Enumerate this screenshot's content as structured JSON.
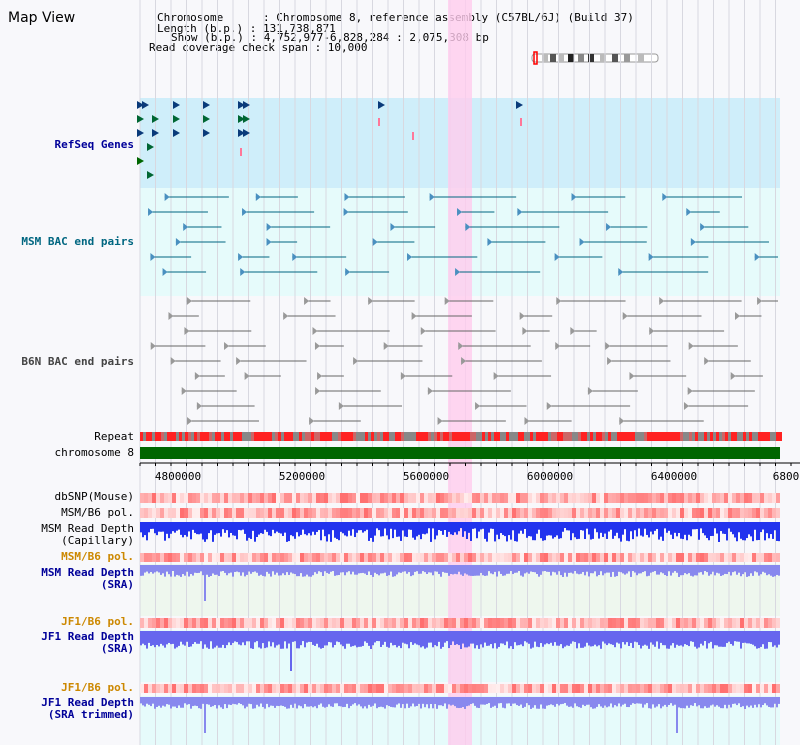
{
  "title": "Map View",
  "info": {
    "chromosome": "Chromosome      : Chromosome 8, reference assembly (C57BL/6J) (Build 37)",
    "length": "Length (b.p.) : 131,738,871",
    "show": "Show (b.p.) : 4,752,977-6,828,284 : 2,075,308 bp",
    "coverage": "Read coverage check span : 10,000"
  },
  "tracks": {
    "refseq": "RefSeq Genes",
    "msm_bac": "MSM BAC end pairs",
    "b6n_bac": "B6N BAC end pairs",
    "repeat": "Repeat",
    "chromosome": "chromosome 8",
    "dbsnp": "dbSNP(Mouse)",
    "msm_b6_pol_1": "MSM/B6 pol.",
    "msm_read_depth_cap": "MSM Read Depth\n(Capillary)",
    "msm_b6_pol_2": "MSM/B6 pol.",
    "msm_read_depth_sra": "MSM Read Depth\n(SRA)",
    "jf1_b6_pol_1": "JF1/B6 pol.",
    "jf1_read_depth_sra": "JF1 Read Depth\n(SRA)",
    "jf1_b6_pol_2": "JF1/B6 pol.",
    "jf1_read_depth_trim": "JF1 Read Depth\n(SRA trimmed)"
  },
  "axis": {
    "ticks": [
      "4800000",
      "5200000",
      "5600000",
      "6000000",
      "6400000",
      "6800"
    ]
  },
  "colors": {
    "refseq_label": "#000099",
    "msm_label": "#006680",
    "b6n_label": "#444444",
    "orange_label": "#cc8800",
    "blue_label": "#000099",
    "highlight": "#ffccee",
    "refseq_bg": "#cfeefa",
    "msm_bg": "#e6fbfb",
    "chrom_green": "#006600"
  }
}
